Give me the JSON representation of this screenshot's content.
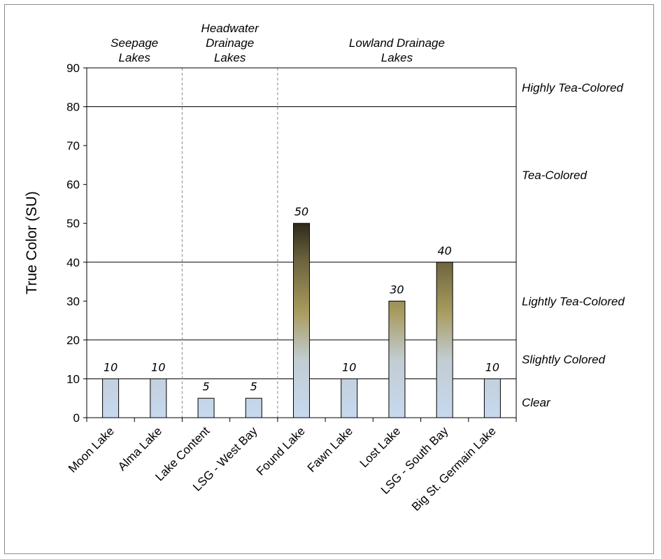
{
  "chart_data": {
    "type": "bar",
    "title": "",
    "xlabel": "",
    "ylabel": "True Color (SU)",
    "ylim": [
      0,
      90
    ],
    "yticks": [
      0,
      10,
      20,
      30,
      40,
      50,
      60,
      70,
      80,
      90
    ],
    "categories": [
      "Moon Lake",
      "Alma Lake",
      "Lake Content",
      "LSG - West Bay",
      "Found Lake",
      "Fawn Lake",
      "Lost Lake",
      "LSG - South Bay",
      "Big St. Germain Lake"
    ],
    "values": [
      10,
      10,
      5,
      5,
      50,
      10,
      30,
      40,
      10
    ],
    "data_labels": [
      "10",
      "10",
      "5",
      "5",
      "50",
      "10",
      "30",
      "40",
      "10"
    ],
    "groups": [
      {
        "label_lines": [
          "Seepage",
          "Lakes"
        ],
        "start": 0,
        "end": 1
      },
      {
        "label_lines": [
          "Headwater",
          "Drainage",
          "Lakes"
        ],
        "start": 2,
        "end": 3
      },
      {
        "label_lines": [
          "Lowland Drainage",
          "Lakes"
        ],
        "start": 4,
        "end": 8
      }
    ],
    "reference_lines": [
      10,
      20,
      40,
      80
    ],
    "bands": [
      {
        "label": "Highly Tea-Colored",
        "y": 85
      },
      {
        "label": "Tea-Colored",
        "y": 62.5
      },
      {
        "label": "Lightly Tea-Colored",
        "y": 30
      },
      {
        "label": "Slightly Colored",
        "y": 15
      },
      {
        "label": "Clear",
        "y": 4
      }
    ],
    "grid": false,
    "colors": {
      "bar_light": "#c6d9f0",
      "bar_mid": "#a89a5c",
      "bar_dark": "#2e2a1c",
      "bar_outline": "#000000",
      "separator": "#8c8c8c"
    }
  }
}
